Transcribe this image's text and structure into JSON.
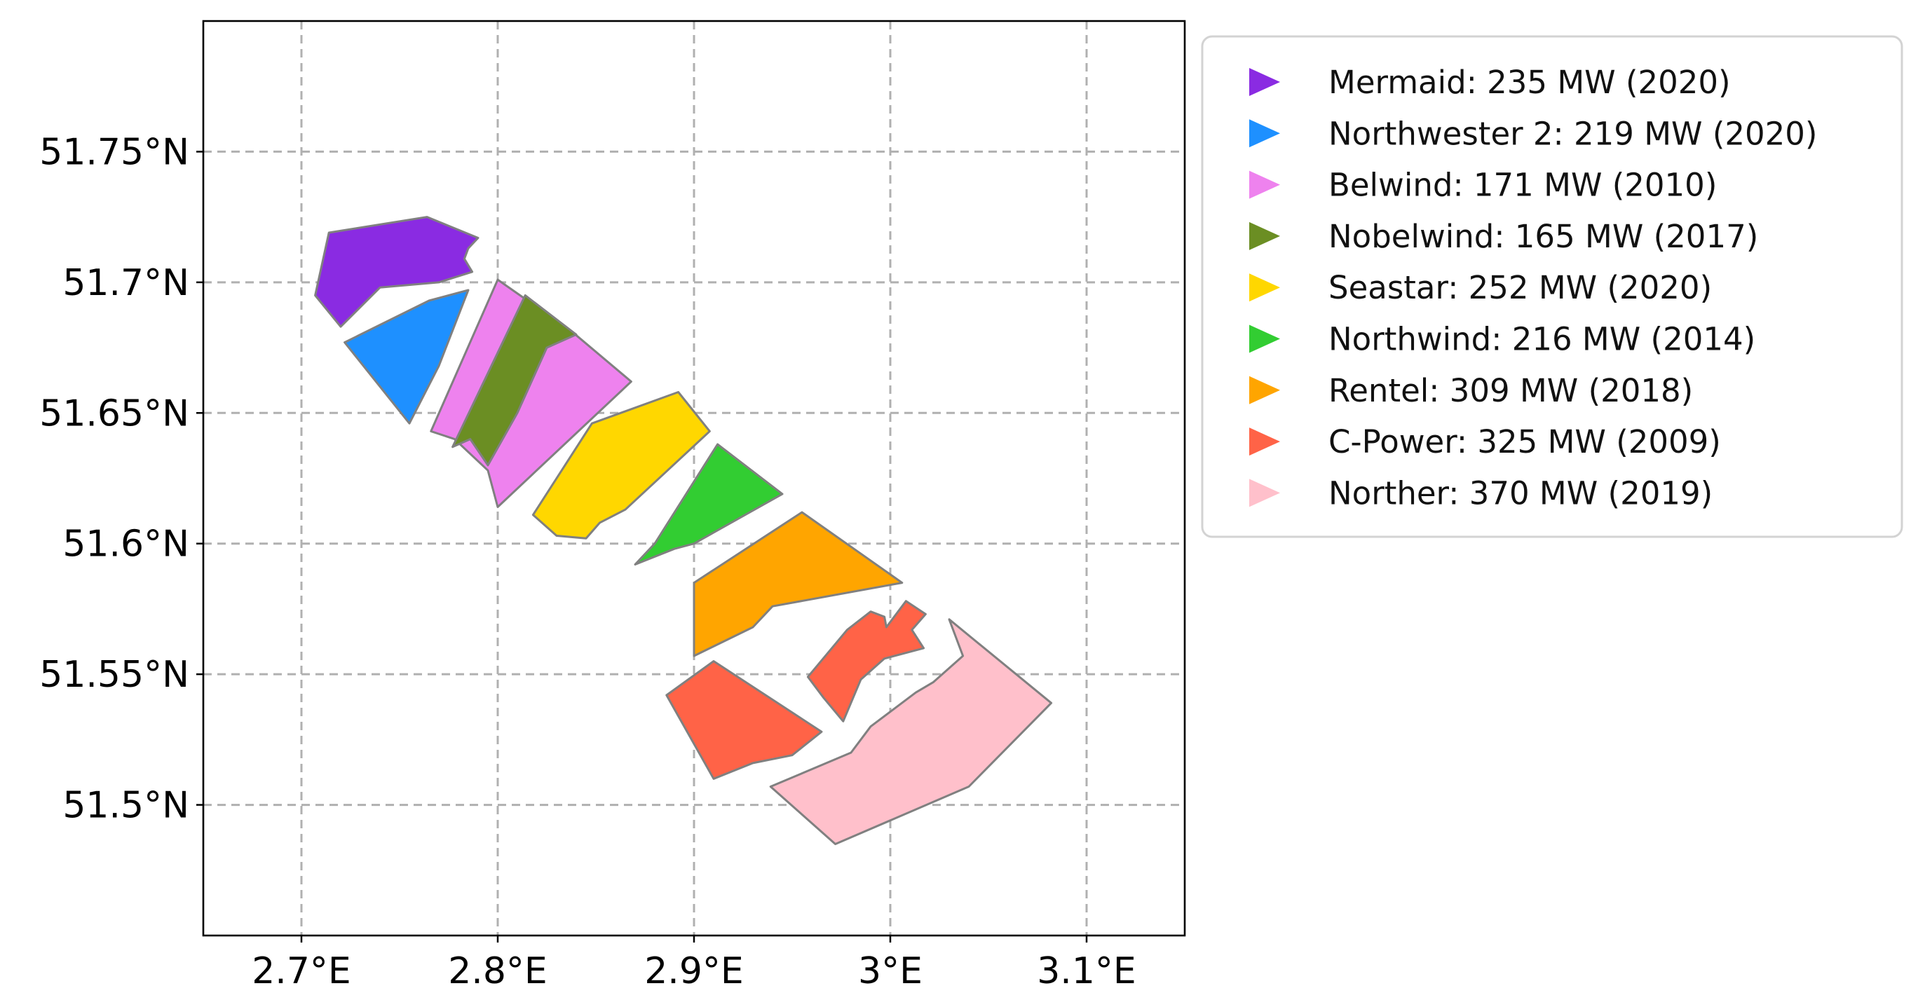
{
  "map": {
    "x_ticks": [
      {
        "label": "2.7°E",
        "value": 2.7
      },
      {
        "label": "2.8°E",
        "value": 2.8
      },
      {
        "label": "2.9°E",
        "value": 2.9
      },
      {
        "label": "3°E",
        "value": 3.0
      },
      {
        "label": "3.1°E",
        "value": 3.1
      }
    ],
    "y_ticks": [
      {
        "label": "51.75°N",
        "value": 51.75
      },
      {
        "label": "51.7°N",
        "value": 51.7
      },
      {
        "label": "51.65°N",
        "value": 51.65
      },
      {
        "label": "51.6°N",
        "value": 51.6
      },
      {
        "label": "51.55°N",
        "value": 51.55
      },
      {
        "label": "51.5°N",
        "value": 51.5
      }
    ],
    "extent": {
      "lon": [
        2.65,
        3.15
      ],
      "lat": [
        51.45,
        51.8
      ]
    },
    "grid": true,
    "gridline_color": "#b0b0b0"
  },
  "legend": {
    "placement": "outside-right-top",
    "entries": [
      {
        "label": "Mermaid: 235 MW (2020)",
        "color": "#8a2be2",
        "marker": "triangle-right"
      },
      {
        "label": "Northwester 2: 219 MW (2020)",
        "color": "#1e90ff",
        "marker": "triangle-right"
      },
      {
        "label": "Belwind: 171 MW (2010)",
        "color": "#ee82ee",
        "marker": "triangle-right"
      },
      {
        "label": "Nobelwind: 165 MW (2017)",
        "color": "#6b8e23",
        "marker": "triangle-right"
      },
      {
        "label": "Seastar: 252 MW (2020)",
        "color": "#ffd700",
        "marker": "triangle-right"
      },
      {
        "label": "Northwind: 216 MW (2014)",
        "color": "#32cd32",
        "marker": "triangle-right"
      },
      {
        "label": "Rentel: 309 MW (2018)",
        "color": "#ffa500",
        "marker": "triangle-right"
      },
      {
        "label": "C-Power: 325 MW (2009)",
        "color": "#ff6347",
        "marker": "triangle-right"
      },
      {
        "label": "Norther: 370 MW (2019)",
        "color": "#ffc0cb",
        "marker": "triangle-right"
      }
    ]
  },
  "zones": [
    {
      "name": "Mermaid",
      "color": "#8a2be2",
      "coords": [
        [
          2.714,
          51.719
        ],
        [
          2.764,
          51.725
        ],
        [
          2.79,
          51.717
        ],
        [
          2.785,
          51.713
        ],
        [
          2.783,
          51.709
        ],
        [
          2.787,
          51.704
        ],
        [
          2.77,
          51.7
        ],
        [
          2.74,
          51.698
        ],
        [
          2.72,
          51.683
        ],
        [
          2.707,
          51.695
        ]
      ]
    },
    {
      "name": "Northwester 2",
      "color": "#1e90ff",
      "coords": [
        [
          2.722,
          51.677
        ],
        [
          2.765,
          51.693
        ],
        [
          2.785,
          51.697
        ],
        [
          2.77,
          51.668
        ],
        [
          2.755,
          51.646
        ]
      ]
    },
    {
      "name": "Belwind",
      "color": "#ee82ee",
      "coords": [
        [
          2.8,
          51.701
        ],
        [
          2.838,
          51.681
        ],
        [
          2.868,
          51.662
        ],
        [
          2.8,
          51.614
        ],
        [
          2.795,
          51.628
        ],
        [
          2.778,
          51.64
        ],
        [
          2.766,
          51.643
        ]
      ]
    },
    {
      "name": "Nobelwind",
      "color": "#6b8e23",
      "coords": [
        [
          2.814,
          51.695
        ],
        [
          2.84,
          51.68
        ],
        [
          2.825,
          51.675
        ],
        [
          2.81,
          51.65
        ],
        [
          2.795,
          51.63
        ],
        [
          2.786,
          51.64
        ],
        [
          2.777,
          51.637
        ]
      ]
    },
    {
      "name": "Seastar",
      "color": "#ffd700",
      "coords": [
        [
          2.848,
          51.646
        ],
        [
          2.892,
          51.658
        ],
        [
          2.908,
          51.643
        ],
        [
          2.865,
          51.613
        ],
        [
          2.852,
          51.608
        ],
        [
          2.845,
          51.602
        ],
        [
          2.83,
          51.603
        ],
        [
          2.818,
          51.611
        ]
      ]
    },
    {
      "name": "Northwind",
      "color": "#32cd32",
      "coords": [
        [
          2.88,
          51.6
        ],
        [
          2.912,
          51.638
        ],
        [
          2.945,
          51.619
        ],
        [
          2.9,
          51.6
        ],
        [
          2.89,
          51.598
        ],
        [
          2.87,
          51.592
        ]
      ]
    },
    {
      "name": "Rentel",
      "color": "#ffa500",
      "coords": [
        [
          2.9,
          51.585
        ],
        [
          2.955,
          51.612
        ],
        [
          3.006,
          51.585
        ],
        [
          2.94,
          51.576
        ],
        [
          2.93,
          51.568
        ],
        [
          2.9,
          51.557
        ]
      ]
    },
    {
      "name": "C-Power (north)",
      "color": "#ff6347",
      "coords": [
        [
          2.958,
          51.549
        ],
        [
          2.978,
          51.567
        ],
        [
          2.99,
          51.574
        ],
        [
          2.997,
          51.572
        ],
        [
          2.998,
          51.568
        ],
        [
          3.008,
          51.578
        ],
        [
          3.018,
          51.573
        ],
        [
          3.011,
          51.567
        ],
        [
          3.017,
          51.56
        ],
        [
          2.997,
          51.556
        ],
        [
          2.985,
          51.548
        ],
        [
          2.976,
          51.532
        ],
        [
          2.966,
          51.541
        ]
      ]
    },
    {
      "name": "C-Power (south)",
      "color": "#ff6347",
      "coords": [
        [
          2.886,
          51.542
        ],
        [
          2.91,
          51.555
        ],
        [
          2.965,
          51.528
        ],
        [
          2.95,
          51.519
        ],
        [
          2.93,
          51.516
        ],
        [
          2.91,
          51.51
        ]
      ]
    },
    {
      "name": "Norther",
      "color": "#ffc0cb",
      "coords": [
        [
          2.939,
          51.507
        ],
        [
          2.972,
          51.485
        ],
        [
          3.04,
          51.507
        ],
        [
          3.082,
          51.539
        ],
        [
          3.03,
          51.571
        ],
        [
          3.037,
          51.557
        ],
        [
          3.022,
          51.547
        ],
        [
          3.013,
          51.543
        ],
        [
          2.99,
          51.53
        ],
        [
          2.98,
          51.52
        ]
      ]
    }
  ]
}
